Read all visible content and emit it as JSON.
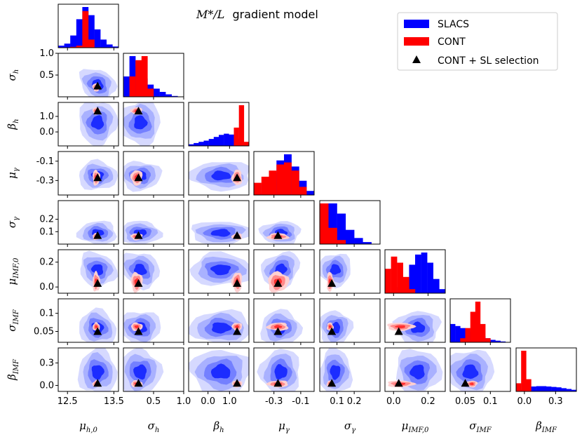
{
  "chart_data": {
    "type": "corner",
    "title_math": "M*/L",
    "title_text": "gradient model",
    "params": [
      {
        "label": "μ",
        "sub": "h,0",
        "range": [
          12.3,
          13.6
        ],
        "ticks": [
          12.5,
          13.5
        ],
        "tick_labels": [
          "12.5",
          "13.5"
        ],
        "truth": 13.15
      },
      {
        "label": "σ",
        "sub": "h",
        "range": [
          0.0,
          1.0
        ],
        "ticks": [
          0.5,
          1.0
        ],
        "tick_labels": [
          "0.5",
          "1.0"
        ],
        "truth": 0.25
      },
      {
        "label": "β",
        "sub": "h",
        "range": [
          -0.9,
          1.9
        ],
        "ticks": [
          0.0,
          1.0
        ],
        "tick_labels": [
          "0.0",
          "1.0"
        ],
        "truth": 1.35
      },
      {
        "label": "μ",
        "sub": "γ",
        "range": [
          -0.45,
          0.0
        ],
        "ticks": [
          -0.3,
          -0.1
        ],
        "tick_labels": [
          "-0.3",
          "-0.1"
        ],
        "truth": -0.27
      },
      {
        "label": "σ",
        "sub": "γ",
        "range": [
          0.0,
          0.35
        ],
        "ticks": [
          0.1,
          0.2
        ],
        "tick_labels": [
          "0.1",
          "0.2"
        ],
        "truth": 0.07
      },
      {
        "label": "μ",
        "sub": "IMF,0",
        "range": [
          -0.05,
          0.3
        ],
        "ticks": [
          0.0,
          0.2
        ],
        "tick_labels": [
          "0.0",
          "0.2"
        ],
        "truth": 0.03
      },
      {
        "label": "σ",
        "sub": "IMF",
        "range": [
          0.02,
          0.14
        ],
        "ticks": [
          0.05,
          0.1
        ],
        "tick_labels": [
          "0.05",
          "0.1"
        ],
        "truth": 0.05
      },
      {
        "label": "β",
        "sub": "IMF",
        "range": [
          -0.08,
          0.5
        ],
        "ticks": [
          0.0,
          0.3
        ],
        "tick_labels": [
          "0.0",
          "0.3"
        ],
        "truth": 0.03
      }
    ],
    "y_tick_overrides": {
      "1": {
        "ticks": [
          0.5,
          1.0
        ],
        "tick_labels": [
          "0.5",
          "1.0"
        ]
      },
      "3": {
        "ticks": [
          -0.3,
          -0.1
        ],
        "tick_labels": [
          "-0.3",
          "-0.1"
        ]
      },
      "4": {
        "ticks": [
          0.1,
          0.2
        ],
        "tick_labels": [
          "0.1",
          "0.2"
        ]
      },
      "6": {
        "ticks": [
          0.05,
          0.1
        ],
        "tick_labels": [
          "0.05",
          "0.1"
        ]
      },
      "7": {
        "ticks": [
          0.0,
          0.3
        ],
        "tick_labels": [
          "0.0",
          "0.3"
        ]
      }
    },
    "series": [
      {
        "name": "SLACS",
        "color": "#0000ff"
      },
      {
        "name": "CONT",
        "color": "#ff0000"
      },
      {
        "name": "CONT + SL selection",
        "color": "#000000",
        "marker": "triangle"
      }
    ],
    "slacs_centers": [
      13.15,
      0.28,
      0.6,
      -0.25,
      0.09,
      0.14,
      0.06,
      0.18
    ],
    "slacs_widths": [
      0.22,
      0.18,
      0.75,
      0.08,
      0.05,
      0.07,
      0.025,
      0.16
    ],
    "cont_centers": [
      13.12,
      0.22,
      1.35,
      -0.27,
      0.06,
      0.04,
      0.063,
      0.02
    ],
    "cont_widths": [
      0.05,
      0.06,
      0.15,
      0.05,
      0.012,
      0.05,
      0.007,
      0.02
    ],
    "slacs_hist": [
      [
        0.05,
        0.1,
        0.3,
        0.7,
        1.0,
        0.8,
        0.45,
        0.2,
        0.08,
        0.03
      ],
      [
        0.5,
        1.0,
        0.75,
        0.45,
        0.3,
        0.2,
        0.12,
        0.06,
        0.02,
        0.0
      ],
      [
        0.04,
        0.07,
        0.1,
        0.13,
        0.17,
        0.22,
        0.27,
        0.3,
        0.28,
        0.18,
        0.08,
        0.0
      ],
      [
        0.05,
        0.25,
        0.55,
        0.85,
        1.0,
        0.7,
        0.35,
        0.1
      ],
      [
        0.4,
        1.0,
        0.75,
        0.35,
        0.15,
        0.05,
        0.0
      ],
      [
        0.0,
        0.0,
        0.15,
        0.35,
        0.7,
        0.95,
        1.0,
        0.75,
        0.35,
        0.1
      ],
      [
        0.45,
        0.4,
        0.35,
        0.3,
        0.25,
        0.2,
        0.15,
        0.1,
        0.06,
        0.04,
        0.02,
        0.0
      ],
      [
        0.02,
        0.05,
        0.08,
        0.12,
        0.13,
        0.13,
        0.12,
        0.11,
        0.1,
        0.08,
        0.06,
        0.04
      ]
    ],
    "cont_hist": [
      [
        0.0,
        0.0,
        0.02,
        0.05,
        0.9,
        0.2,
        0.0,
        0.0,
        0.0,
        0.0
      ],
      [
        0.0,
        0.5,
        0.9,
        1.0,
        0.2,
        0.0,
        0.0,
        0.0,
        0.0,
        0.0
      ],
      [
        0.0,
        0.0,
        0.0,
        0.0,
        0.0,
        0.0,
        0.0,
        0.0,
        0.0,
        0.45,
        1.0,
        0.1
      ],
      [
        0.3,
        0.45,
        0.6,
        0.75,
        0.8,
        0.6,
        0.2,
        0.0
      ],
      [
        1.0,
        0.4,
        0.1,
        0.0,
        0.0,
        0.0,
        0.0
      ],
      [
        0.6,
        0.9,
        0.75,
        0.4,
        0.1,
        0.0,
        0.0,
        0.0,
        0.0,
        0.0
      ],
      [
        0.0,
        0.0,
        0.1,
        0.35,
        0.75,
        1.0,
        0.45,
        0.1,
        0.0,
        0.0,
        0.0,
        0.0
      ],
      [
        0.2,
        1.0,
        0.3,
        0.0,
        0.0,
        0.0,
        0.0,
        0.0,
        0.0,
        0.0,
        0.0,
        0.0
      ]
    ]
  }
}
